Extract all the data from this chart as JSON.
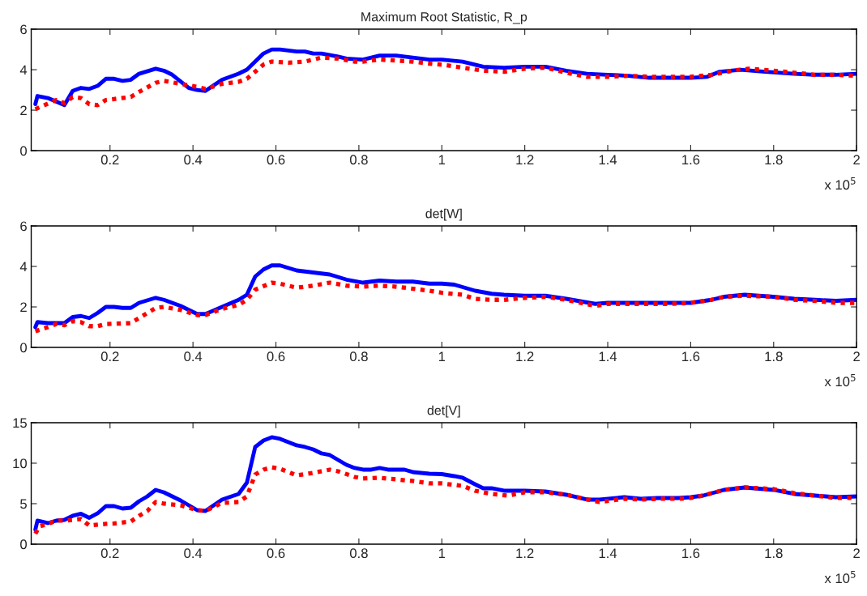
{
  "chart_data": [
    {
      "type": "line",
      "title": "Maximum Root Statistic, R_p",
      "xlim": [
        0.01,
        2
      ],
      "xticks": [
        0.2,
        0.4,
        0.6,
        0.8,
        1,
        1.2,
        1.4,
        1.6,
        1.8,
        2
      ],
      "ylim": [
        0,
        6
      ],
      "yticks": [
        0,
        2,
        4,
        6
      ],
      "annotations": [
        "x 10$^{5}$"
      ],
      "grid": false,
      "legend": false,
      "marker": "none",
      "series": [
        {
          "color": "#0000ff",
          "line_style": "solid",
          "x": [
            0.02,
            0.025,
            0.05,
            0.09,
            0.11,
            0.13,
            0.15,
            0.17,
            0.19,
            0.21,
            0.23,
            0.25,
            0.27,
            0.31,
            0.33,
            0.35,
            0.39,
            0.41,
            0.43,
            0.47,
            0.51,
            0.53,
            0.57,
            0.59,
            0.61,
            0.65,
            0.67,
            0.69,
            0.71,
            0.75,
            0.77,
            0.81,
            0.85,
            0.89,
            0.93,
            0.97,
            1.0,
            1.05,
            1.1,
            1.15,
            1.2,
            1.25,
            1.3,
            1.35,
            1.4,
            1.45,
            1.5,
            1.55,
            1.6,
            1.64,
            1.67,
            1.72,
            1.78,
            1.85,
            1.9,
            1.95,
            2.0
          ],
          "values": [
            2.3,
            2.7,
            2.6,
            2.25,
            2.95,
            3.1,
            3.05,
            3.2,
            3.55,
            3.55,
            3.45,
            3.5,
            3.8,
            4.05,
            3.95,
            3.75,
            3.1,
            3.0,
            2.95,
            3.5,
            3.8,
            4.0,
            4.8,
            5.0,
            5.0,
            4.9,
            4.9,
            4.8,
            4.8,
            4.65,
            4.55,
            4.5,
            4.7,
            4.7,
            4.6,
            4.5,
            4.5,
            4.4,
            4.15,
            4.1,
            4.15,
            4.15,
            3.95,
            3.8,
            3.75,
            3.7,
            3.6,
            3.6,
            3.6,
            3.65,
            3.9,
            4.0,
            3.9,
            3.8,
            3.75,
            3.75,
            3.8
          ]
        },
        {
          "color": "#ff0000",
          "line_style": "dotted",
          "x": [
            0.02,
            0.07,
            0.09,
            0.11,
            0.13,
            0.15,
            0.17,
            0.19,
            0.21,
            0.25,
            0.27,
            0.31,
            0.33,
            0.37,
            0.41,
            0.43,
            0.47,
            0.51,
            0.53,
            0.57,
            0.59,
            0.63,
            0.67,
            0.71,
            0.75,
            0.79,
            0.81,
            0.85,
            0.89,
            0.93,
            0.97,
            1.0,
            1.05,
            1.1,
            1.15,
            1.2,
            1.25,
            1.3,
            1.35,
            1.4,
            1.45,
            1.5,
            1.55,
            1.6,
            1.65,
            1.7,
            1.74,
            1.8,
            1.85,
            1.9,
            1.95,
            2.0
          ],
          "values": [
            2.05,
            2.5,
            2.35,
            2.65,
            2.6,
            2.3,
            2.25,
            2.5,
            2.55,
            2.65,
            2.9,
            3.35,
            3.45,
            3.3,
            3.15,
            3.05,
            3.3,
            3.4,
            3.55,
            4.25,
            4.4,
            4.35,
            4.4,
            4.6,
            4.55,
            4.4,
            4.4,
            4.5,
            4.45,
            4.4,
            4.3,
            4.25,
            4.1,
            3.95,
            3.9,
            4.05,
            4.1,
            3.85,
            3.65,
            3.65,
            3.7,
            3.65,
            3.65,
            3.65,
            3.75,
            3.95,
            4.05,
            3.95,
            3.85,
            3.75,
            3.75,
            3.7
          ]
        }
      ]
    },
    {
      "type": "line",
      "title": "det[W]",
      "xlim": [
        0.01,
        2
      ],
      "xticks": [
        0.2,
        0.4,
        0.6,
        0.8,
        1,
        1.2,
        1.4,
        1.6,
        1.8,
        2
      ],
      "ylim": [
        0,
        6
      ],
      "yticks": [
        0,
        2,
        4,
        6
      ],
      "annotations": [
        "x 10$^{5}$"
      ],
      "grid": false,
      "legend": false,
      "marker": "none",
      "series": [
        {
          "color": "#0000ff",
          "line_style": "solid",
          "x": [
            0.02,
            0.025,
            0.05,
            0.09,
            0.11,
            0.13,
            0.15,
            0.17,
            0.19,
            0.21,
            0.23,
            0.25,
            0.27,
            0.31,
            0.33,
            0.37,
            0.39,
            0.41,
            0.43,
            0.47,
            0.51,
            0.53,
            0.55,
            0.57,
            0.59,
            0.61,
            0.65,
            0.69,
            0.73,
            0.77,
            0.81,
            0.85,
            0.89,
            0.93,
            0.97,
            1.0,
            1.03,
            1.08,
            1.12,
            1.15,
            1.2,
            1.25,
            1.3,
            1.37,
            1.4,
            1.45,
            1.5,
            1.55,
            1.6,
            1.65,
            1.68,
            1.73,
            1.8,
            1.85,
            1.9,
            1.95,
            2.0
          ],
          "values": [
            1.0,
            1.25,
            1.2,
            1.2,
            1.5,
            1.55,
            1.45,
            1.7,
            2.0,
            2.0,
            1.95,
            1.95,
            2.2,
            2.45,
            2.35,
            2.05,
            1.85,
            1.65,
            1.65,
            2.0,
            2.35,
            2.6,
            3.5,
            3.85,
            4.05,
            4.05,
            3.8,
            3.7,
            3.6,
            3.35,
            3.2,
            3.3,
            3.25,
            3.25,
            3.15,
            3.15,
            3.1,
            2.8,
            2.65,
            2.6,
            2.55,
            2.55,
            2.4,
            2.15,
            2.2,
            2.2,
            2.2,
            2.2,
            2.2,
            2.35,
            2.5,
            2.6,
            2.5,
            2.4,
            2.35,
            2.3,
            2.35
          ]
        },
        {
          "color": "#ff0000",
          "line_style": "dotted",
          "x": [
            0.02,
            0.05,
            0.07,
            0.09,
            0.11,
            0.13,
            0.15,
            0.17,
            0.19,
            0.25,
            0.27,
            0.31,
            0.33,
            0.37,
            0.41,
            0.43,
            0.47,
            0.51,
            0.53,
            0.55,
            0.59,
            0.61,
            0.65,
            0.69,
            0.73,
            0.77,
            0.81,
            0.85,
            0.89,
            0.93,
            0.97,
            1.0,
            1.05,
            1.08,
            1.12,
            1.15,
            1.2,
            1.25,
            1.3,
            1.37,
            1.4,
            1.45,
            1.5,
            1.55,
            1.6,
            1.65,
            1.68,
            1.73,
            1.8,
            1.85,
            1.9,
            1.95,
            2.0
          ],
          "values": [
            0.8,
            1.0,
            1.15,
            1.1,
            1.3,
            1.25,
            1.05,
            1.05,
            1.15,
            1.2,
            1.45,
            1.95,
            2.0,
            1.85,
            1.6,
            1.6,
            1.9,
            2.1,
            2.35,
            2.85,
            3.2,
            3.15,
            2.95,
            3.05,
            3.2,
            3.05,
            3.0,
            3.05,
            3.0,
            2.9,
            2.8,
            2.7,
            2.6,
            2.4,
            2.35,
            2.35,
            2.45,
            2.5,
            2.35,
            2.05,
            2.15,
            2.15,
            2.15,
            2.15,
            2.2,
            2.35,
            2.5,
            2.55,
            2.5,
            2.35,
            2.3,
            2.2,
            2.2
          ]
        }
      ]
    },
    {
      "type": "line",
      "title": "det[V]",
      "xlim": [
        0.01,
        2
      ],
      "xticks": [
        0.2,
        0.4,
        0.6,
        0.8,
        1,
        1.2,
        1.4,
        1.6,
        1.8,
        2
      ],
      "ylim": [
        0,
        15
      ],
      "yticks": [
        0,
        5,
        10,
        15
      ],
      "annotations": [
        "x 10$^{5}$"
      ],
      "grid": false,
      "legend": false,
      "marker": "none",
      "series": [
        {
          "color": "#0000ff",
          "line_style": "solid",
          "x": [
            0.02,
            0.025,
            0.05,
            0.07,
            0.09,
            0.11,
            0.13,
            0.15,
            0.17,
            0.19,
            0.21,
            0.23,
            0.25,
            0.27,
            0.29,
            0.31,
            0.33,
            0.37,
            0.41,
            0.43,
            0.47,
            0.51,
            0.53,
            0.55,
            0.57,
            0.59,
            0.61,
            0.65,
            0.67,
            0.69,
            0.71,
            0.73,
            0.77,
            0.79,
            0.81,
            0.83,
            0.85,
            0.87,
            0.91,
            0.93,
            0.97,
            1.0,
            1.03,
            1.05,
            1.08,
            1.1,
            1.12,
            1.15,
            1.2,
            1.25,
            1.3,
            1.35,
            1.38,
            1.44,
            1.48,
            1.52,
            1.57,
            1.6,
            1.63,
            1.68,
            1.73,
            1.8,
            1.85,
            1.9,
            1.95,
            2.0
          ],
          "values": [
            1.8,
            2.9,
            2.6,
            2.9,
            3.0,
            3.5,
            3.75,
            3.25,
            3.8,
            4.7,
            4.7,
            4.4,
            4.5,
            5.3,
            5.9,
            6.7,
            6.4,
            5.4,
            4.2,
            4.1,
            5.5,
            6.2,
            7.6,
            12.0,
            12.8,
            13.2,
            13.0,
            12.2,
            12.0,
            11.7,
            11.2,
            11.0,
            9.8,
            9.4,
            9.2,
            9.2,
            9.4,
            9.2,
            9.2,
            8.9,
            8.7,
            8.65,
            8.4,
            8.2,
            7.4,
            6.9,
            6.9,
            6.6,
            6.6,
            6.5,
            6.1,
            5.5,
            5.5,
            5.8,
            5.6,
            5.7,
            5.7,
            5.8,
            6.0,
            6.7,
            7.0,
            6.7,
            6.2,
            6.0,
            5.8,
            5.9
          ]
        },
        {
          "color": "#ff0000",
          "line_style": "dotted",
          "x": [
            0.02,
            0.03,
            0.05,
            0.07,
            0.09,
            0.11,
            0.13,
            0.15,
            0.19,
            0.21,
            0.25,
            0.27,
            0.29,
            0.31,
            0.33,
            0.37,
            0.41,
            0.43,
            0.47,
            0.51,
            0.53,
            0.55,
            0.57,
            0.59,
            0.61,
            0.65,
            0.69,
            0.73,
            0.75,
            0.79,
            0.81,
            0.85,
            0.89,
            0.93,
            0.97,
            1.0,
            1.05,
            1.08,
            1.12,
            1.16,
            1.2,
            1.25,
            1.3,
            1.38,
            1.44,
            1.48,
            1.52,
            1.57,
            1.6,
            1.63,
            1.68,
            1.73,
            1.8,
            1.85,
            1.9,
            1.95,
            2.0
          ],
          "values": [
            1.3,
            2.2,
            2.5,
            2.9,
            2.9,
            3.0,
            3.1,
            2.3,
            2.5,
            2.55,
            2.8,
            3.5,
            4.1,
            5.2,
            5.0,
            4.8,
            4.2,
            4.1,
            5.1,
            5.2,
            5.9,
            8.6,
            9.2,
            9.5,
            9.3,
            8.5,
            8.8,
            9.2,
            9.0,
            8.3,
            8.1,
            8.2,
            8.0,
            7.8,
            7.5,
            7.5,
            7.2,
            6.6,
            6.2,
            6.0,
            6.4,
            6.4,
            6.1,
            5.2,
            5.6,
            5.5,
            5.6,
            5.6,
            5.7,
            6.0,
            6.7,
            7.0,
            6.8,
            6.3,
            6.0,
            5.7,
            5.7
          ]
        }
      ]
    }
  ]
}
